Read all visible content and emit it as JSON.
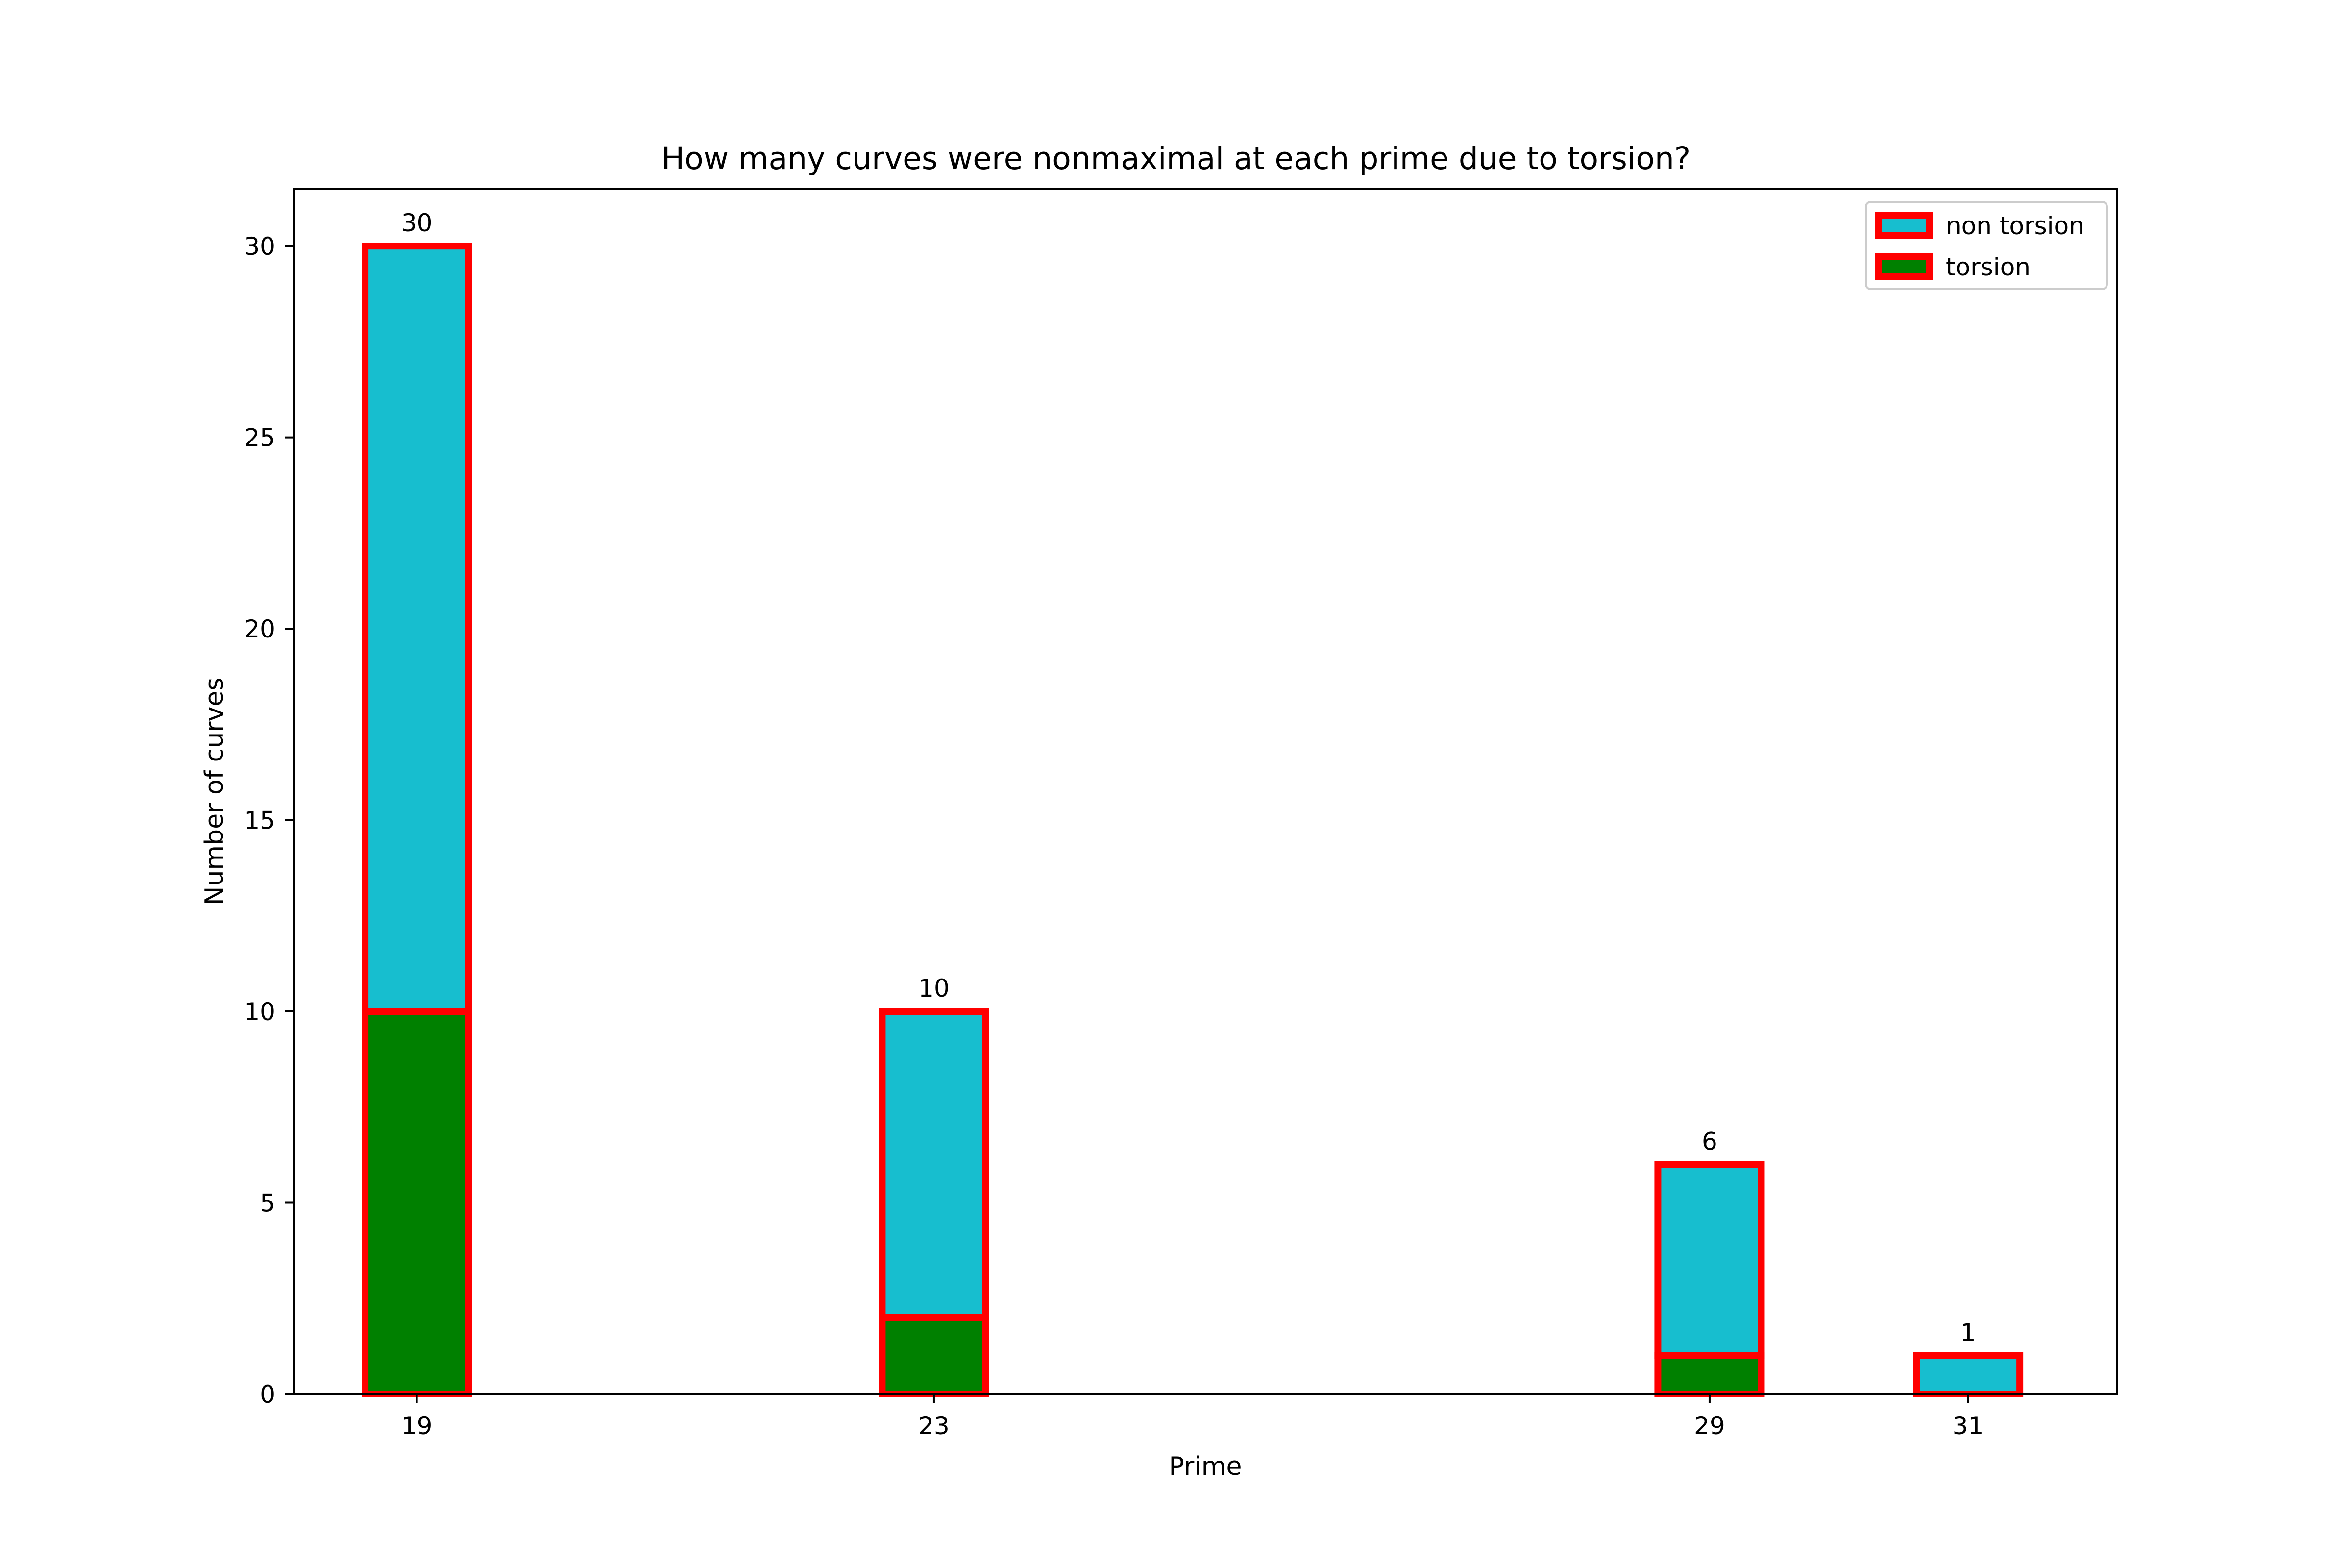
{
  "chart_data": {
    "type": "bar",
    "stacked": true,
    "title": "How many curves were nonmaximal at each prime due to torsion?",
    "xlabel": "Prime",
    "ylabel": "Number of curves",
    "x": [
      19,
      23,
      29,
      31
    ],
    "xlim": [
      18.05,
      32.15
    ],
    "ylim": [
      0,
      31.5
    ],
    "yticks": [
      0,
      5,
      10,
      15,
      20,
      25,
      30
    ],
    "ytick_labels": [
      "0",
      "5",
      "10",
      "15",
      "20",
      "25",
      "30"
    ],
    "xtick_labels": [
      "19",
      "23",
      "29",
      "31"
    ],
    "bar_width": 0.8,
    "series": [
      {
        "name": "torsion",
        "values": [
          10,
          2,
          1,
          0
        ],
        "color": "#008000"
      },
      {
        "name": "non torsion",
        "values": [
          20,
          8,
          5,
          1
        ],
        "color": "#17becf"
      }
    ],
    "totals": [
      30,
      10,
      6,
      1
    ],
    "total_labels": [
      "30",
      "10",
      "6",
      "1"
    ],
    "edge_color": "#ff0000",
    "legend": {
      "placement": "top-right",
      "entries": [
        {
          "label": "non torsion",
          "color": "#17becf"
        },
        {
          "label": "torsion",
          "color": "#008000"
        }
      ]
    },
    "grid": false
  }
}
